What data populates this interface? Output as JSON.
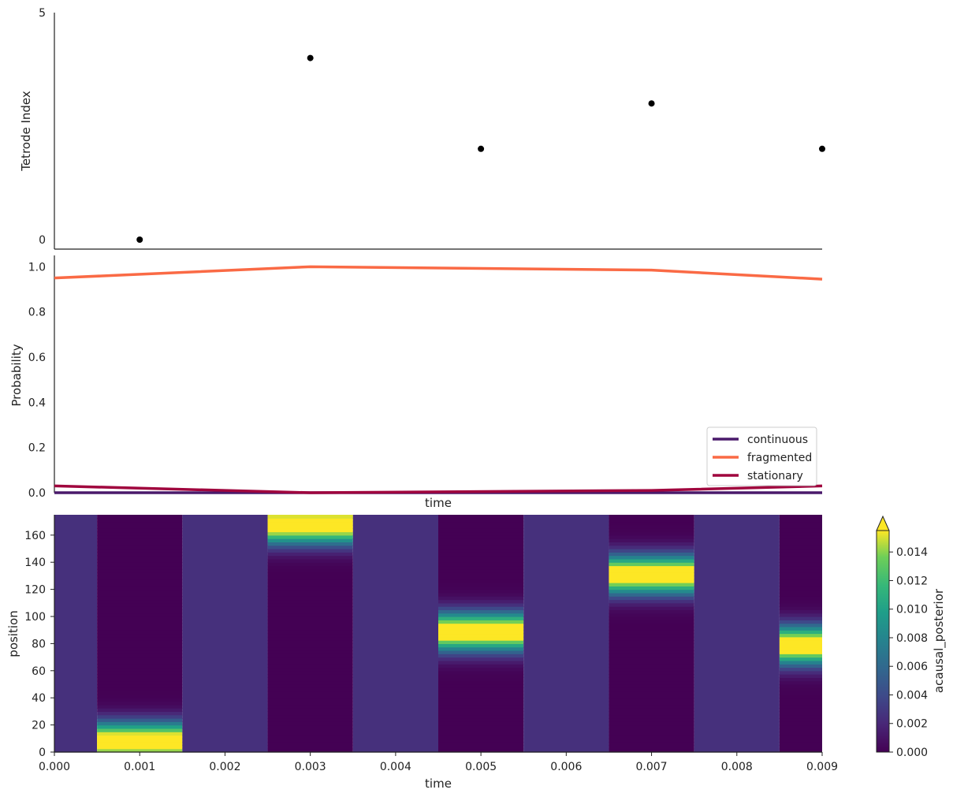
{
  "chart_data": [
    {
      "type": "scatter",
      "ylabel": "Tetrode Index",
      "xlim": [
        0.0,
        0.009
      ],
      "ylim": [
        0,
        5
      ],
      "yticks": [
        "0",
        "5"
      ],
      "points": [
        {
          "x": 0.001,
          "y": 0
        },
        {
          "x": 0.003,
          "y": 4
        },
        {
          "x": 0.005,
          "y": 2
        },
        {
          "x": 0.007,
          "y": 3
        },
        {
          "x": 0.009,
          "y": 2
        }
      ],
      "color": "#000000"
    },
    {
      "type": "line",
      "xlabel": "time",
      "ylabel": "Probability",
      "xlim": [
        0.0,
        0.009
      ],
      "ylim": [
        0.0,
        1.05
      ],
      "yticks": [
        "0.0",
        "0.2",
        "0.4",
        "0.6",
        "0.8",
        "1.0"
      ],
      "x": [
        0.0,
        0.003,
        0.007,
        0.009
      ],
      "series": [
        {
          "name": "continuous",
          "color": "#4a1a6b",
          "values": [
            0.0,
            0.0,
            0.0,
            0.0
          ]
        },
        {
          "name": "fragmented",
          "color": "#fa6a45",
          "values": [
            0.95,
            1.0,
            0.985,
            0.945
          ]
        },
        {
          "name": "stationary",
          "color": "#a0063e",
          "values": [
            0.03,
            0.0,
            0.01,
            0.03
          ]
        }
      ],
      "legend_position": "lower-right"
    },
    {
      "type": "heatmap",
      "xlabel": "time",
      "ylabel": "position",
      "colorbar_label": "acausal_posterior",
      "xlim": [
        0.0,
        0.009
      ],
      "ylim": [
        0,
        175
      ],
      "xticks": [
        "0.000",
        "0.001",
        "0.002",
        "0.003",
        "0.004",
        "0.005",
        "0.006",
        "0.007",
        "0.008",
        "0.009"
      ],
      "yticks": [
        "0",
        "20",
        "40",
        "60",
        "80",
        "100",
        "120",
        "140",
        "160"
      ],
      "colorbar_ticks": [
        "0.000",
        "0.002",
        "0.004",
        "0.006",
        "0.008",
        "0.010",
        "0.012",
        "0.014"
      ],
      "colorbar_range": [
        0.0,
        0.0155
      ],
      "colormap": "viridis",
      "time_bins": [
        {
          "t": 0.0,
          "center": null,
          "value": 0.0024
        },
        {
          "t": 0.001,
          "center": 8,
          "value": 0.0
        },
        {
          "t": 0.002,
          "center": null,
          "value": 0.0024
        },
        {
          "t": 0.003,
          "center": 168,
          "value": 0.0
        },
        {
          "t": 0.004,
          "center": null,
          "value": 0.0024
        },
        {
          "t": 0.005,
          "center": 89,
          "value": 0.0
        },
        {
          "t": 0.006,
          "center": null,
          "value": 0.0024
        },
        {
          "t": 0.007,
          "center": 131,
          "value": 0.0
        },
        {
          "t": 0.008,
          "center": null,
          "value": 0.0024
        },
        {
          "t": 0.009,
          "center": 79,
          "value": 0.0
        }
      ]
    }
  ]
}
